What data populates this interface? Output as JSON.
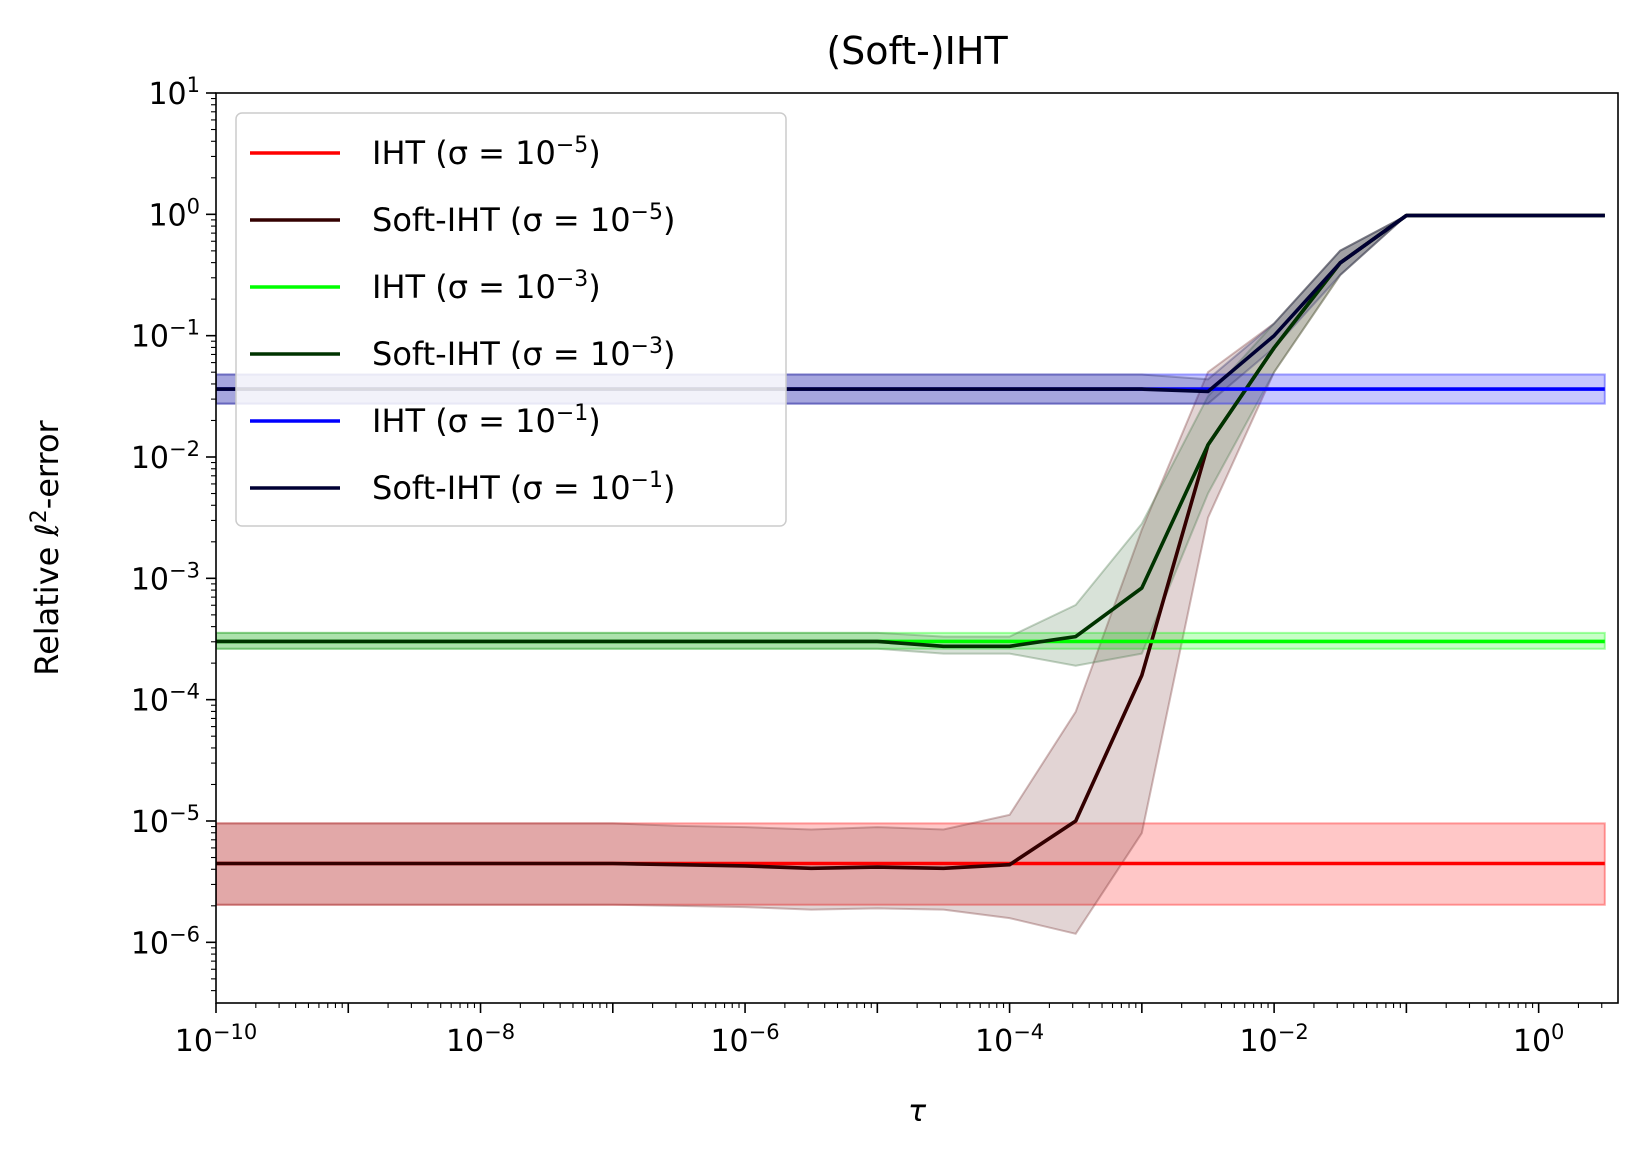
{
  "chart_data": {
    "type": "line",
    "title": "(Soft-)IHT",
    "xlabel": "τ",
    "ylabel_prefix": "Relative ℓ",
    "ylabel_sup": "2",
    "ylabel_suffix": "-error",
    "xscale": "log",
    "yscale": "log",
    "xlim_exp": [
      -10,
      0.6
    ],
    "ylim_exp": [
      -6.5,
      1
    ],
    "x_ticks": [
      {
        "base": "10",
        "exp": "−10",
        "value_exp": -10
      },
      {
        "base": "10",
        "exp": "−8",
        "value_exp": -8
      },
      {
        "base": "10",
        "exp": "−6",
        "value_exp": -6
      },
      {
        "base": "10",
        "exp": "−4",
        "value_exp": -4
      },
      {
        "base": "10",
        "exp": "−2",
        "value_exp": -2
      },
      {
        "base": "10",
        "exp": "0",
        "value_exp": 0
      }
    ],
    "y_ticks": [
      {
        "base": "10",
        "exp": "1",
        "value_exp": 1
      },
      {
        "base": "10",
        "exp": "0",
        "value_exp": 0
      },
      {
        "base": "10",
        "exp": "−1",
        "value_exp": -1
      },
      {
        "base": "10",
        "exp": "−2",
        "value_exp": -2
      },
      {
        "base": "10",
        "exp": "−3",
        "value_exp": -3
      },
      {
        "base": "10",
        "exp": "−4",
        "value_exp": -4
      },
      {
        "base": "10",
        "exp": "−5",
        "value_exp": -5
      },
      {
        "base": "10",
        "exp": "−6",
        "value_exp": -6
      }
    ],
    "legend_position": "top-left",
    "x_exp": [
      -10,
      -9.5,
      -9,
      -8.5,
      -8,
      -7.5,
      -7,
      -6.5,
      -6,
      -5.5,
      -5,
      -4.5,
      -4,
      -3.5,
      -3,
      -2.5,
      -2,
      -1.5,
      -1,
      -0.5,
      0,
      0.5
    ],
    "series": [
      {
        "name": "IHT (σ = 10⁻⁵)",
        "legend_prefix": "IHT (σ = 10",
        "legend_exp": "−5",
        "color": "#ff0000",
        "band_color": "#ff0000",
        "line": [
          -5.35,
          -5.35,
          -5.35,
          -5.35,
          -5.35,
          -5.35,
          -5.35,
          -5.35,
          -5.35,
          -5.35,
          -5.35,
          -5.35,
          -5.35,
          -5.35,
          -5.35,
          -5.35,
          -5.35,
          -5.35,
          -5.35,
          -5.35,
          -5.35,
          -5.35
        ],
        "upper": [
          -5.02,
          -5.02,
          -5.02,
          -5.02,
          -5.02,
          -5.02,
          -5.02,
          -5.02,
          -5.02,
          -5.02,
          -5.02,
          -5.02,
          -5.02,
          -5.02,
          -5.02,
          -5.02,
          -5.02,
          -5.02,
          -5.02,
          -5.02,
          -5.02,
          -5.02
        ],
        "lower": [
          -5.69,
          -5.69,
          -5.69,
          -5.69,
          -5.69,
          -5.69,
          -5.69,
          -5.69,
          -5.69,
          -5.69,
          -5.69,
          -5.69,
          -5.69,
          -5.69,
          -5.69,
          -5.69,
          -5.69,
          -5.69,
          -5.69,
          -5.69,
          -5.69,
          -5.69
        ]
      },
      {
        "name": "Soft-IHT (σ = 10⁻⁵)",
        "legend_prefix": "Soft-IHT (σ = 10",
        "legend_exp": "−5",
        "color": "#330000",
        "band_color": "#7a3a3a",
        "line": [
          -5.35,
          -5.35,
          -5.35,
          -5.35,
          -5.35,
          -5.35,
          -5.35,
          -5.36,
          -5.37,
          -5.39,
          -5.38,
          -5.39,
          -5.36,
          -5.0,
          -3.8,
          -1.9,
          -1.1,
          -0.4,
          -0.01,
          -0.01,
          -0.01,
          -0.01
        ],
        "upper": [
          -5.02,
          -5.02,
          -5.02,
          -5.02,
          -5.02,
          -5.02,
          -5.02,
          -5.04,
          -5.05,
          -5.07,
          -5.05,
          -5.07,
          -4.95,
          -4.1,
          -2.6,
          -1.3,
          -0.9,
          -0.3,
          -0.01,
          -0.01,
          -0.01,
          -0.01
        ],
        "lower": [
          -5.69,
          -5.69,
          -5.69,
          -5.69,
          -5.69,
          -5.69,
          -5.69,
          -5.7,
          -5.71,
          -5.73,
          -5.72,
          -5.73,
          -5.8,
          -5.93,
          -5.1,
          -2.5,
          -1.3,
          -0.5,
          -0.01,
          -0.01,
          -0.01,
          -0.01
        ]
      },
      {
        "name": "IHT (σ = 10⁻³)",
        "legend_prefix": "IHT (σ = 10",
        "legend_exp": "−3",
        "color": "#00ff00",
        "band_color": "#00ff00",
        "line": [
          -3.52,
          -3.52,
          -3.52,
          -3.52,
          -3.52,
          -3.52,
          -3.52,
          -3.52,
          -3.52,
          -3.52,
          -3.52,
          -3.52,
          -3.52,
          -3.52,
          -3.52,
          -3.52,
          -3.52,
          -3.52,
          -3.52,
          -3.52,
          -3.52,
          -3.52
        ],
        "upper": [
          -3.45,
          -3.45,
          -3.45,
          -3.45,
          -3.45,
          -3.45,
          -3.45,
          -3.45,
          -3.45,
          -3.45,
          -3.45,
          -3.45,
          -3.45,
          -3.45,
          -3.45,
          -3.45,
          -3.45,
          -3.45,
          -3.45,
          -3.45,
          -3.45,
          -3.45
        ],
        "lower": [
          -3.58,
          -3.58,
          -3.58,
          -3.58,
          -3.58,
          -3.58,
          -3.58,
          -3.58,
          -3.58,
          -3.58,
          -3.58,
          -3.58,
          -3.58,
          -3.58,
          -3.58,
          -3.58,
          -3.58,
          -3.58,
          -3.58,
          -3.58,
          -3.58,
          -3.58
        ]
      },
      {
        "name": "Soft-IHT (σ = 10⁻³)",
        "legend_prefix": "Soft-IHT (σ = 10",
        "legend_exp": "−3",
        "color": "#003300",
        "band_color": "#4f7a4f",
        "line": [
          -3.52,
          -3.52,
          -3.52,
          -3.52,
          -3.52,
          -3.52,
          -3.52,
          -3.52,
          -3.52,
          -3.52,
          -3.52,
          -3.56,
          -3.56,
          -3.48,
          -3.08,
          -1.9,
          -1.1,
          -0.4,
          -0.01,
          -0.01,
          -0.01,
          -0.01
        ],
        "upper": [
          -3.45,
          -3.45,
          -3.45,
          -3.45,
          -3.45,
          -3.45,
          -3.45,
          -3.45,
          -3.45,
          -3.45,
          -3.45,
          -3.48,
          -3.48,
          -3.22,
          -2.55,
          -1.5,
          -0.9,
          -0.3,
          -0.01,
          -0.01,
          -0.01,
          -0.01
        ],
        "lower": [
          -3.58,
          -3.58,
          -3.58,
          -3.58,
          -3.58,
          -3.58,
          -3.58,
          -3.58,
          -3.58,
          -3.58,
          -3.58,
          -3.62,
          -3.62,
          -3.72,
          -3.62,
          -2.3,
          -1.3,
          -0.5,
          -0.01,
          -0.01,
          -0.01,
          -0.01
        ]
      },
      {
        "name": "IHT (σ = 10⁻¹)",
        "legend_prefix": "IHT (σ = 10",
        "legend_exp": "−1",
        "color": "#0000ff",
        "band_color": "#0000ff",
        "line": [
          -1.44,
          -1.44,
          -1.44,
          -1.44,
          -1.44,
          -1.44,
          -1.44,
          -1.44,
          -1.44,
          -1.44,
          -1.44,
          -1.44,
          -1.44,
          -1.44,
          -1.44,
          -1.44,
          -1.44,
          -1.44,
          -1.44,
          -1.44,
          -1.44,
          -1.44
        ],
        "upper": [
          -1.32,
          -1.32,
          -1.32,
          -1.32,
          -1.32,
          -1.32,
          -1.32,
          -1.32,
          -1.32,
          -1.32,
          -1.32,
          -1.32,
          -1.32,
          -1.32,
          -1.32,
          -1.32,
          -1.32,
          -1.32,
          -1.32,
          -1.32,
          -1.32,
          -1.32
        ],
        "lower": [
          -1.56,
          -1.56,
          -1.56,
          -1.56,
          -1.56,
          -1.56,
          -1.56,
          -1.56,
          -1.56,
          -1.56,
          -1.56,
          -1.56,
          -1.56,
          -1.56,
          -1.56,
          -1.56,
          -1.56,
          -1.56,
          -1.56,
          -1.56,
          -1.56,
          -1.56
        ]
      },
      {
        "name": "Soft-IHT (σ = 10⁻¹)",
        "legend_prefix": "Soft-IHT (σ = 10",
        "legend_exp": "−1",
        "color": "#000033",
        "band_color": "#33336a",
        "line": [
          -1.44,
          -1.44,
          -1.44,
          -1.44,
          -1.44,
          -1.44,
          -1.44,
          -1.44,
          -1.44,
          -1.44,
          -1.44,
          -1.44,
          -1.44,
          -1.44,
          -1.44,
          -1.46,
          -1.0,
          -0.4,
          -0.01,
          -0.01,
          -0.01,
          -0.01
        ],
        "upper": [
          -1.32,
          -1.32,
          -1.32,
          -1.32,
          -1.32,
          -1.32,
          -1.32,
          -1.32,
          -1.32,
          -1.32,
          -1.32,
          -1.32,
          -1.32,
          -1.32,
          -1.32,
          -1.36,
          -0.9,
          -0.3,
          -0.01,
          -0.01,
          -0.01,
          -0.01
        ],
        "lower": [
          -1.56,
          -1.56,
          -1.56,
          -1.56,
          -1.56,
          -1.56,
          -1.56,
          -1.56,
          -1.56,
          -1.56,
          -1.56,
          -1.56,
          -1.56,
          -1.56,
          -1.56,
          -1.56,
          -1.1,
          -0.5,
          -0.01,
          -0.01,
          -0.01,
          -0.01
        ]
      }
    ]
  }
}
